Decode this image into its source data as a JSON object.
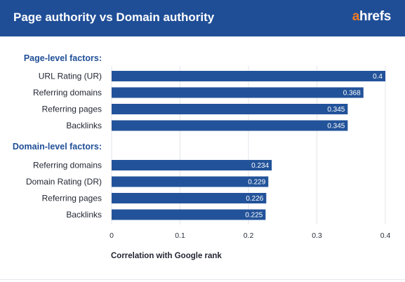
{
  "header": {
    "title": "Page authority vs Domain authority",
    "logo_first": "a",
    "logo_rest": "hrefs"
  },
  "colors": {
    "header_bg": "#1f4e97",
    "bar": "#22539a",
    "group_title": "#1f4e97",
    "logo_accent": "#f47b20"
  },
  "chart_data": {
    "type": "bar",
    "orientation": "horizontal",
    "xlabel": "Correlation with Google rank",
    "xlim": [
      0,
      0.4
    ],
    "xticks": [
      "0",
      "0.1",
      "0.2",
      "0.3",
      "0.4"
    ],
    "grid": true,
    "groups": [
      {
        "title": "Page-level factors:",
        "categories": [
          "URL Rating (UR)",
          "Referring domains",
          "Referring pages",
          "Backlinks"
        ],
        "values": [
          0.4,
          0.368,
          0.345,
          0.345
        ],
        "labels": [
          "0.4",
          "0.368",
          "0.345",
          "0.345"
        ]
      },
      {
        "title": "Domain-level factors:",
        "categories": [
          "Referring domains",
          "Domain Rating (DR)",
          "Referring pages",
          "Backlinks"
        ],
        "values": [
          0.234,
          0.229,
          0.226,
          0.225
        ],
        "labels": [
          "0.234",
          "0.229",
          "0.226",
          "0.225"
        ]
      }
    ]
  }
}
